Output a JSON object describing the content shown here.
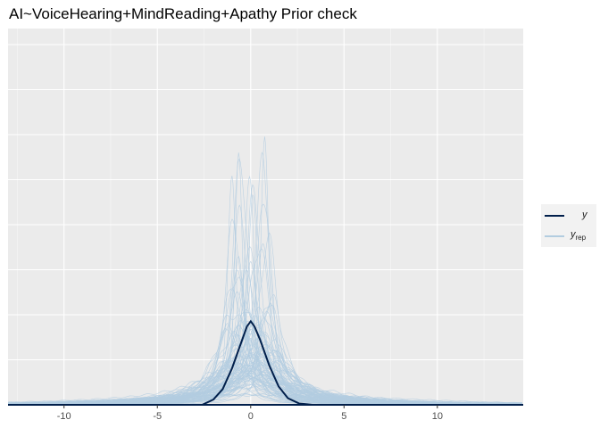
{
  "chart_data": {
    "type": "line",
    "title": "AI~VoiceHearing+MindReading+Apathy Prior check",
    "xlabel": "",
    "ylabel": "",
    "xlim": [
      -13,
      14.6
    ],
    "x_ticks": [
      -10,
      -5,
      0,
      5,
      10
    ],
    "x_tick_labels": [
      "-10",
      "-5",
      "0",
      "5",
      "10"
    ],
    "grid": true,
    "legend_position": "right",
    "legend": [
      {
        "label": "y",
        "color": "#011f4b"
      },
      {
        "label": "y",
        "subscript": "rep",
        "color": "#b3cde0"
      }
    ],
    "observed_density": {
      "name": "y",
      "color": "#011f4b",
      "x": [
        -2.6,
        -2.0,
        -1.5,
        -1.0,
        -0.5,
        -0.2,
        0.0,
        0.2,
        0.5,
        1.0,
        1.5,
        2.0,
        2.6,
        3.3
      ],
      "y": [
        0.0,
        0.02,
        0.06,
        0.14,
        0.24,
        0.3,
        0.32,
        0.3,
        0.25,
        0.15,
        0.07,
        0.025,
        0.005,
        0.0
      ]
    },
    "replicated_densities": {
      "name": "y_rep",
      "color": "#b3cde0",
      "count": 100,
      "peak_y_range": [
        0.05,
        1.42
      ]
    },
    "y_max": 1.42
  }
}
